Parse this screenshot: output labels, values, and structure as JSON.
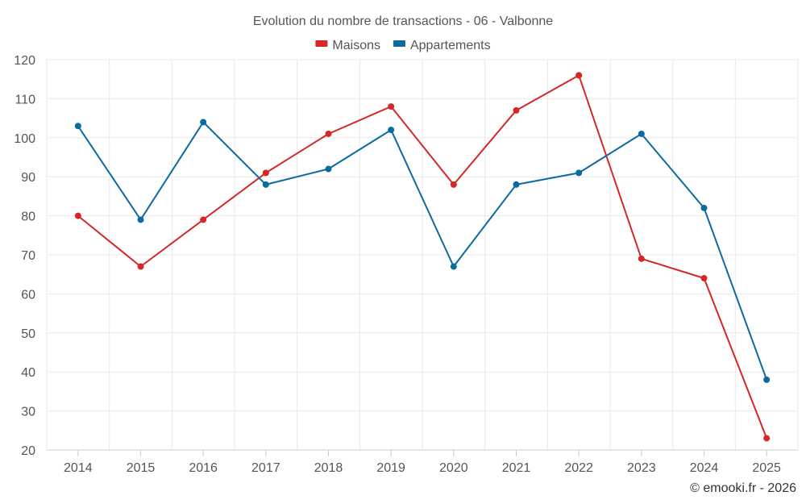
{
  "chart_data": {
    "type": "line",
    "title": "Evolution du nombre de transactions - 06 - Valbonne",
    "xlabel": "",
    "ylabel": "",
    "categories": [
      "2014",
      "2015",
      "2016",
      "2017",
      "2018",
      "2019",
      "2020",
      "2021",
      "2022",
      "2023",
      "2024",
      "2025"
    ],
    "ylim": [
      20,
      120
    ],
    "yticks": [
      20,
      30,
      40,
      50,
      60,
      70,
      80,
      90,
      100,
      110,
      120
    ],
    "grid": true,
    "legend_position": "top-center",
    "series": [
      {
        "name": "Maisons",
        "color": "#d62728",
        "values": [
          80,
          67,
          79,
          91,
          101,
          108,
          88,
          107,
          116,
          69,
          64,
          23
        ]
      },
      {
        "name": "Appartements",
        "color": "#0d6aa0",
        "values": [
          103,
          79,
          104,
          88,
          92,
          102,
          67,
          88,
          91,
          101,
          82,
          38
        ]
      }
    ]
  },
  "credit": "© emooki.fr - 2026"
}
